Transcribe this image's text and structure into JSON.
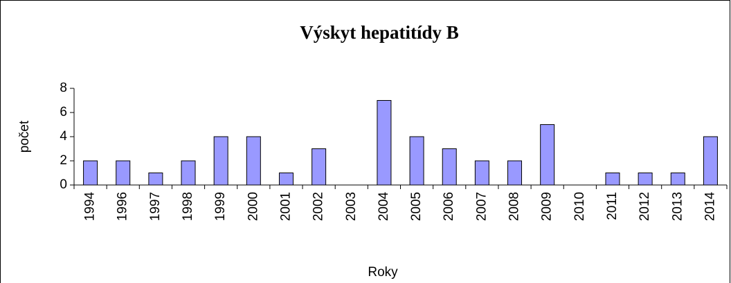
{
  "chart_data": {
    "type": "bar",
    "title": "Výskyt hepatitídy B",
    "x_label": "Roky",
    "y_label": "počet",
    "categories": [
      "1994",
      "1996",
      "1997",
      "1998",
      "1999",
      "2000",
      "2001",
      "2002",
      "2003",
      "2004",
      "2005",
      "2006",
      "2007",
      "2008",
      "2009",
      "2010",
      "2011",
      "2012",
      "2013",
      "2014"
    ],
    "values": [
      2,
      2,
      1,
      2,
      4,
      4,
      1,
      3,
      0,
      7,
      4,
      3,
      2,
      2,
      5,
      0,
      1,
      1,
      1,
      4
    ],
    "color": "#9999ff",
    "ylim": [
      0,
      8
    ],
    "yticks": [
      0,
      2,
      4,
      6,
      8
    ],
    "grid": false
  }
}
